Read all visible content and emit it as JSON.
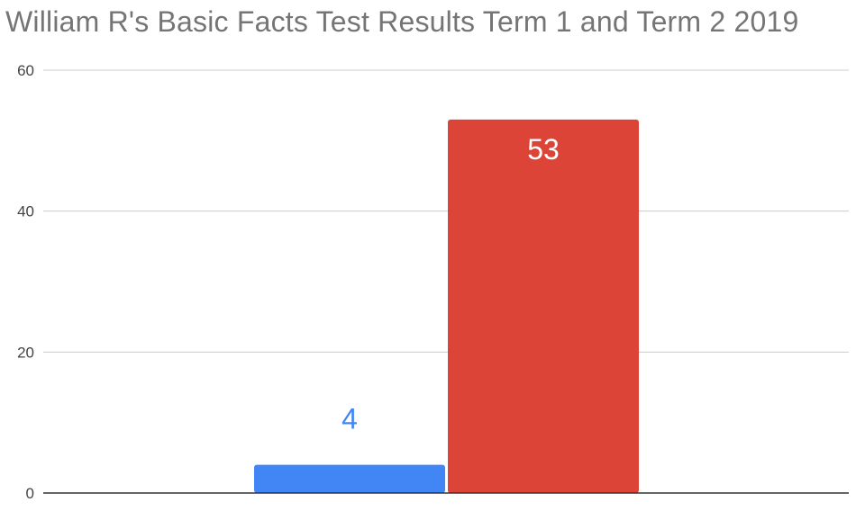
{
  "chart_data": {
    "type": "bar",
    "title": "William R's Basic Facts Test Results Term 1 and Term 2 2019",
    "xlabel": "",
    "ylabel": "",
    "ylim": [
      0,
      60
    ],
    "yticks": [
      0,
      20,
      40,
      60
    ],
    "grid": true,
    "legend": "none",
    "bars": [
      {
        "value": 4,
        "color": "#4285f4",
        "label_color": "#4285f4",
        "label_position": "above"
      },
      {
        "value": 53,
        "color": "#db4437",
        "label_color": "#ffffff",
        "label_position": "inside-top"
      }
    ]
  }
}
